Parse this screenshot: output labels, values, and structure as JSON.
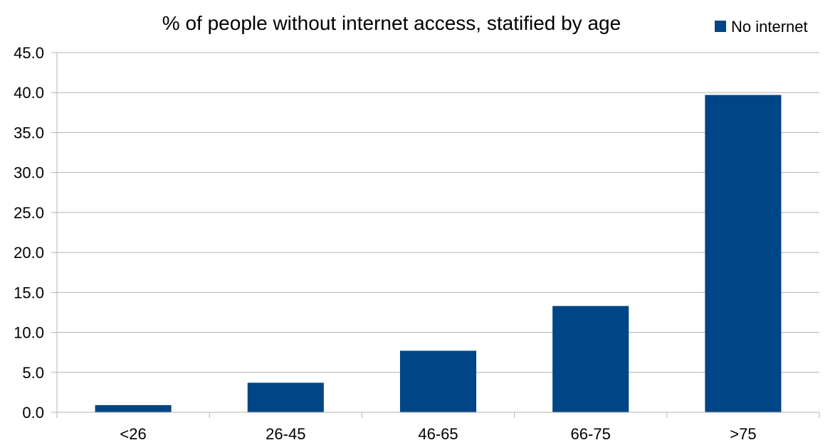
{
  "chart_data": {
    "type": "bar",
    "title": "% of people without internet access, statified by age",
    "xlabel": "",
    "ylabel": "",
    "categories": [
      "<26",
      "26-45",
      "46-65",
      "66-75",
      ">75"
    ],
    "series": [
      {
        "name": "No internet",
        "color": "#004586",
        "values": [
          0.9,
          3.7,
          7.7,
          13.3,
          39.7
        ]
      }
    ],
    "ylim": [
      0,
      45
    ],
    "ytick_step": 5,
    "ytick_labels": [
      "0.0",
      "5.0",
      "10.0",
      "15.0",
      "20.0",
      "25.0",
      "30.0",
      "35.0",
      "40.0",
      "45.0"
    ],
    "grid": true,
    "legend_position": "top-right"
  }
}
